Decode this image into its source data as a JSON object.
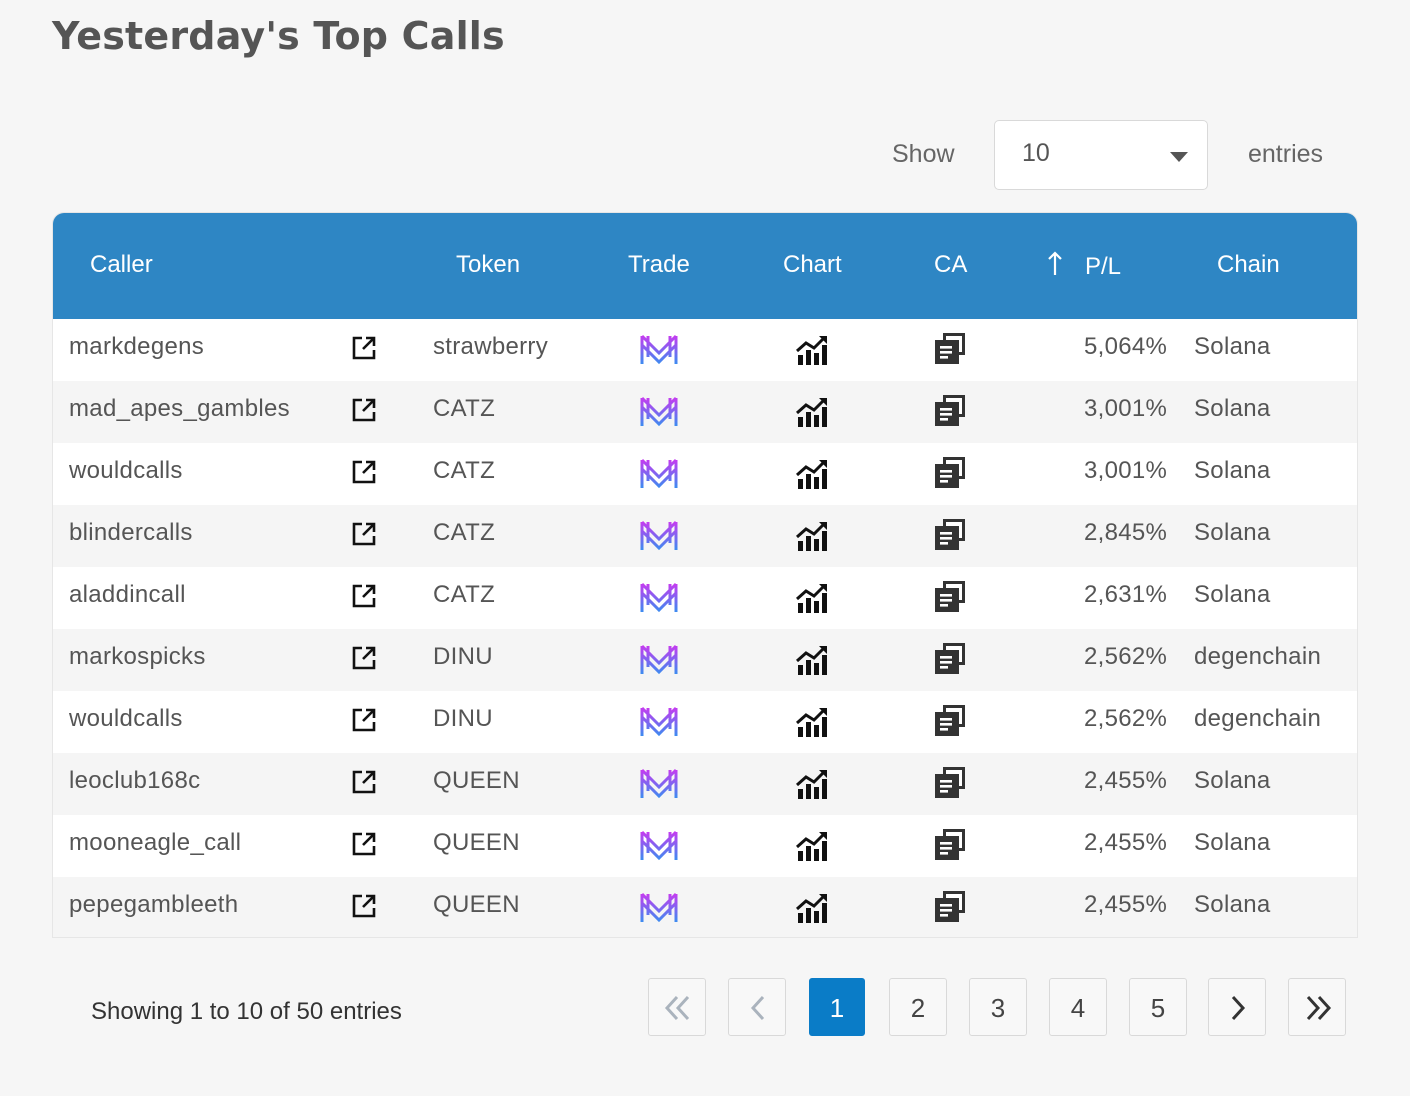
{
  "page_title": "Yesterday's Top Calls",
  "length_menu": {
    "show_label": "Show",
    "selected": "10",
    "entries_label": "entries"
  },
  "columns": {
    "caller": "Caller",
    "token": "Token",
    "trade": "Trade",
    "chart": "Chart",
    "ca": "CA",
    "pl": "P/L",
    "chain": "Chain"
  },
  "rows": [
    {
      "caller": "markdegens",
      "token": "strawberry",
      "pl": "5,064%",
      "chain": "Solana"
    },
    {
      "caller": "mad_apes_gambles",
      "token": "CATZ",
      "pl": "3,001%",
      "chain": "Solana"
    },
    {
      "caller": "wouldcalls",
      "token": "CATZ",
      "pl": "3,001%",
      "chain": "Solana"
    },
    {
      "caller": "blindercalls",
      "token": "CATZ",
      "pl": "2,845%",
      "chain": "Solana"
    },
    {
      "caller": "aladdincall",
      "token": "CATZ",
      "pl": "2,631%",
      "chain": "Solana"
    },
    {
      "caller": "markospicks",
      "token": "DINU",
      "pl": "2,562%",
      "chain": "degenchain"
    },
    {
      "caller": "wouldcalls",
      "token": "DINU",
      "pl": "2,562%",
      "chain": "degenchain"
    },
    {
      "caller": "leoclub168c",
      "token": "QUEEN",
      "pl": "2,455%",
      "chain": "Solana"
    },
    {
      "caller": "mooneagle_call",
      "token": "QUEEN",
      "pl": "2,455%",
      "chain": "Solana"
    },
    {
      "caller": "pepegambleeth",
      "token": "QUEEN",
      "pl": "2,455%",
      "chain": "Solana"
    }
  ],
  "icons": {
    "caller_link": "external-link-icon",
    "trade": "trade-logo-icon",
    "chart": "chart-icon",
    "ca": "copy-icon",
    "sort": "sort-ascending-icon"
  },
  "info_text": "Showing 1 to 10 of 50 entries",
  "pagination": {
    "pages": [
      "1",
      "2",
      "3",
      "4",
      "5"
    ],
    "current": "1",
    "first": "first-page-icon",
    "previous": "previous-page-icon",
    "next": "next-page-icon",
    "last": "last-page-icon"
  },
  "colors": {
    "header": "#2e86c4",
    "active_page": "#0a7cc7",
    "logo_purple": "#b43cf0",
    "logo_blue": "#4a8cf0"
  }
}
